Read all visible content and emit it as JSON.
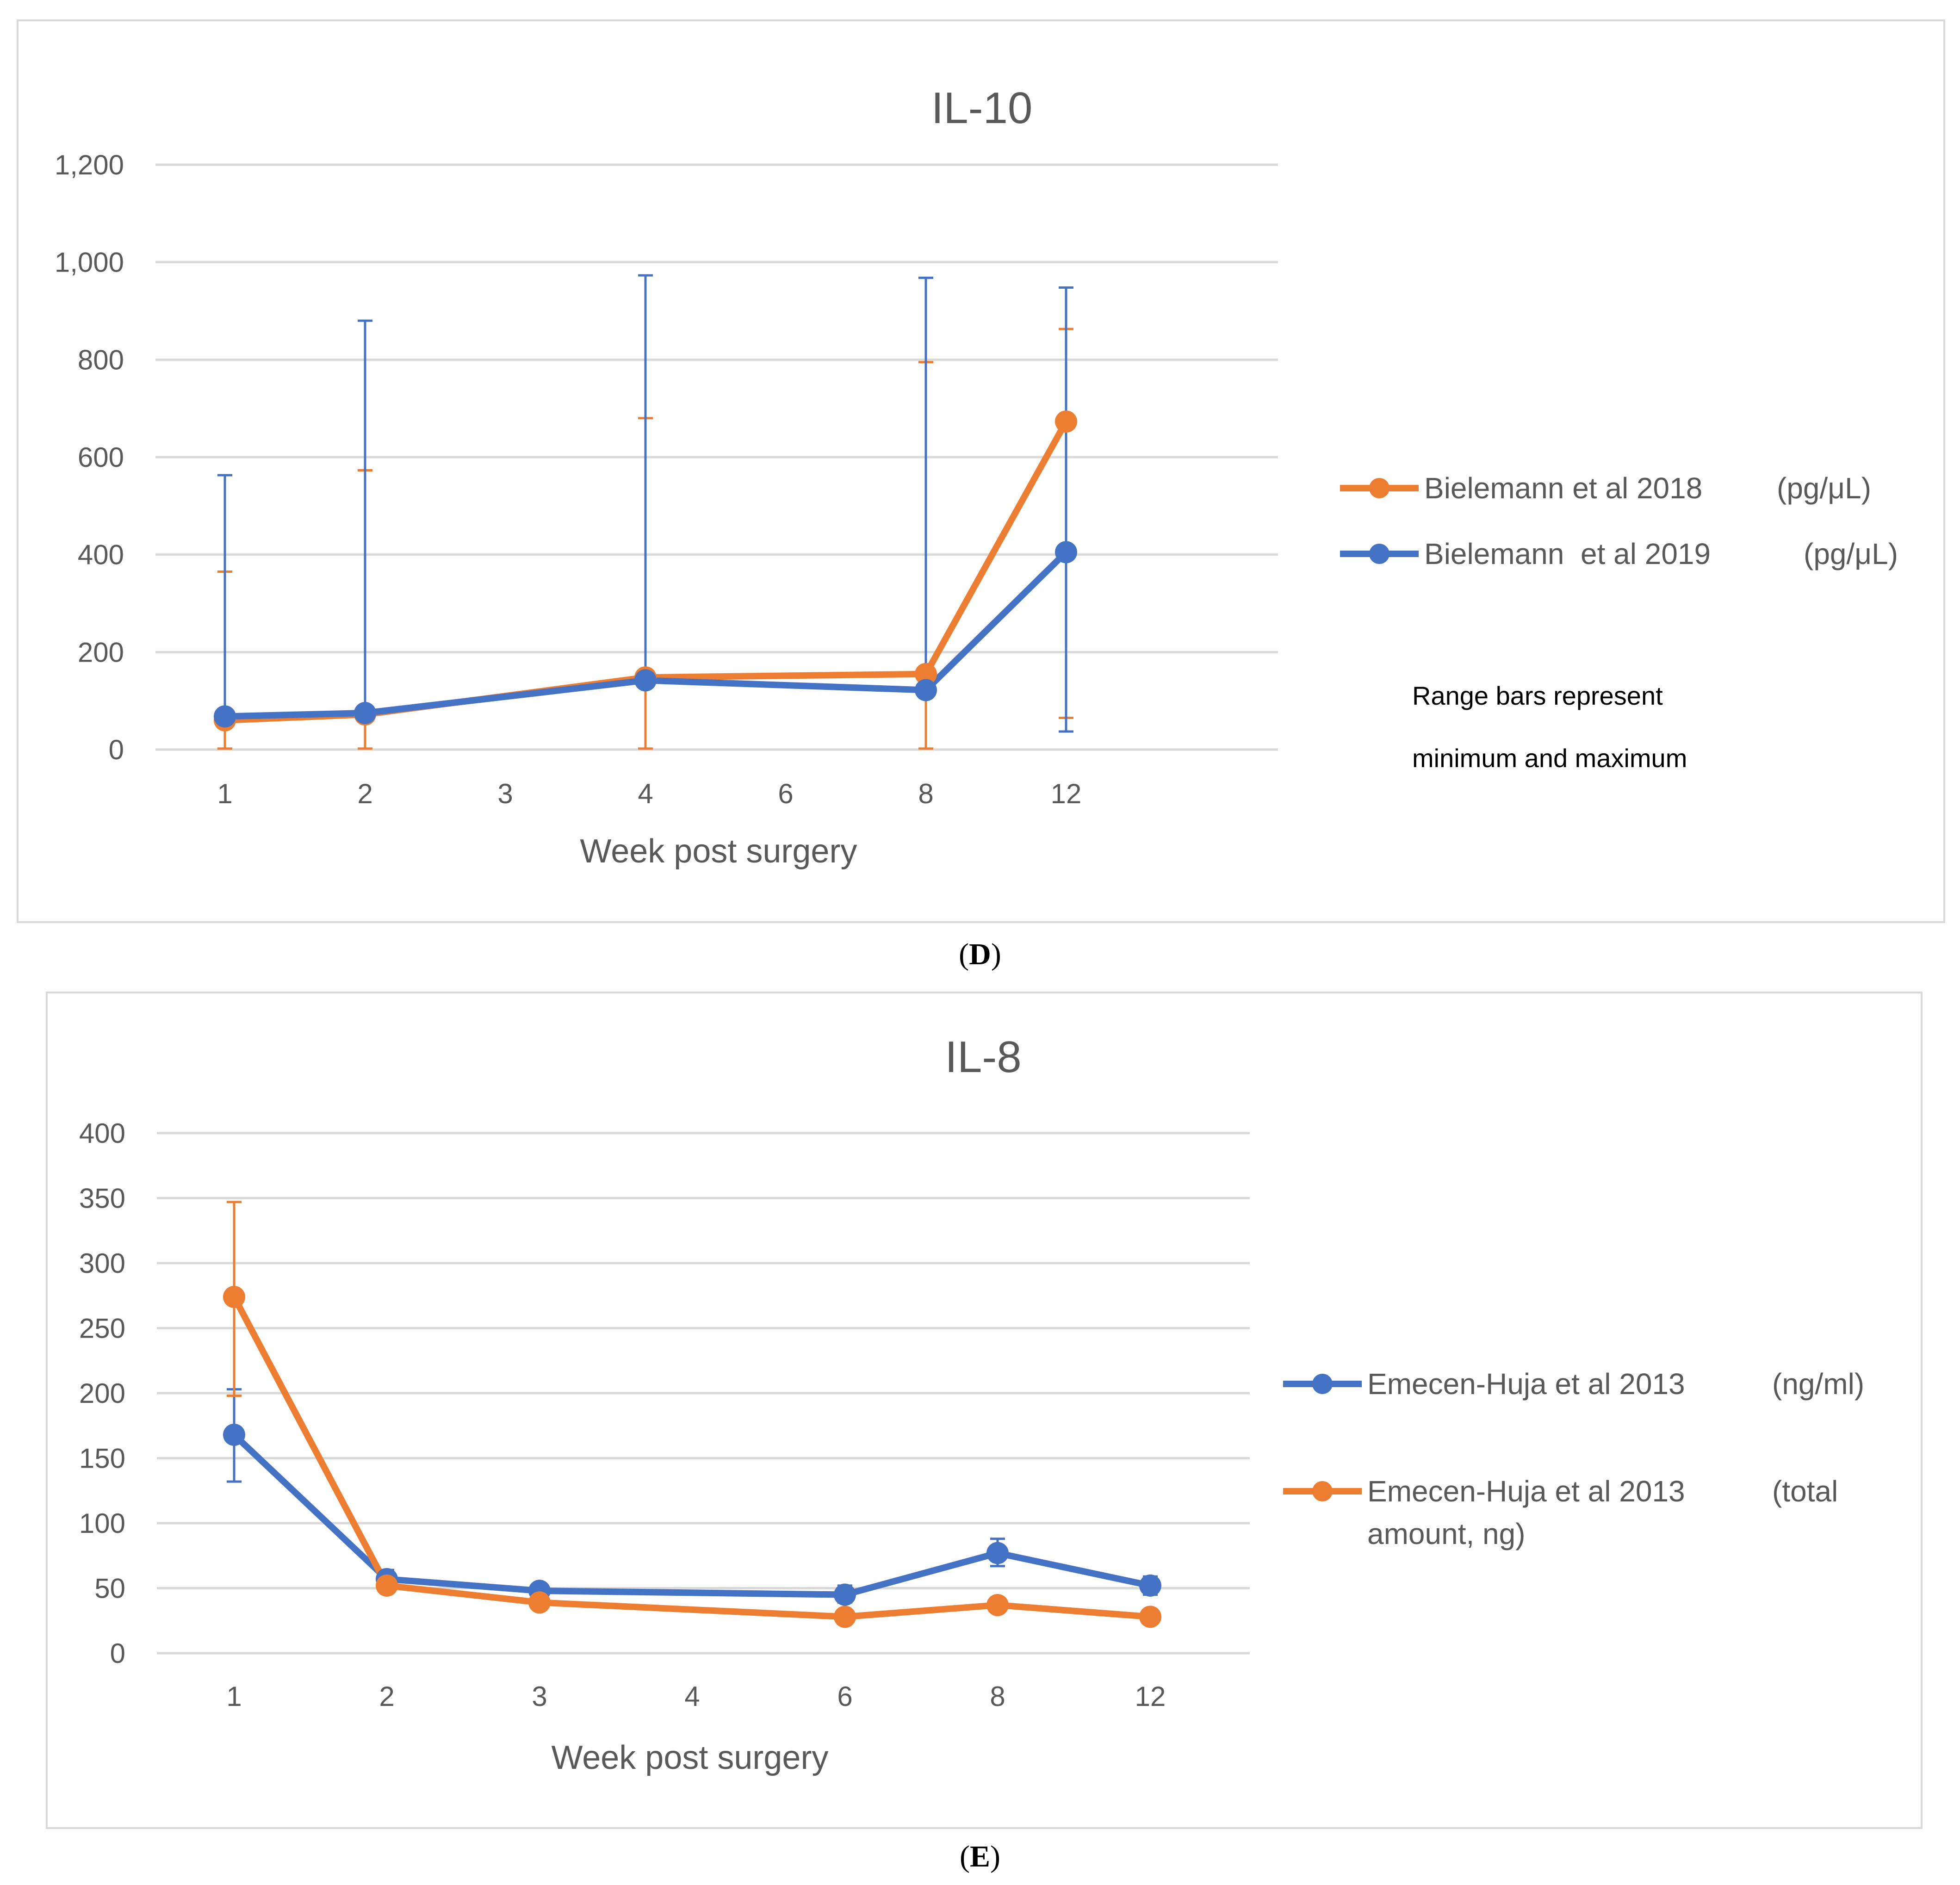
{
  "colors": {
    "orange": "#ED7D31",
    "blue": "#4472C4",
    "grid": "#d9d9d9",
    "text": "#595959"
  },
  "captions": {
    "d_open": "(",
    "d_letter": "D",
    "d_close": ")",
    "e_open": "(",
    "e_letter": "E",
    "e_close": ")"
  },
  "chart_data": [
    {
      "id": "il10",
      "type": "line",
      "title": "IL-10",
      "xlabel": "Week post surgery",
      "ylabel": "",
      "categories": [
        "1",
        "2",
        "3",
        "4",
        "6",
        "8",
        "12"
      ],
      "ylim": [
        0,
        1200
      ],
      "yticks": [
        0,
        200,
        400,
        600,
        800,
        1000,
        1200
      ],
      "ytick_labels": [
        "0",
        "200",
        "400",
        "600",
        "800",
        "1,000",
        "1,200"
      ],
      "grid": true,
      "legend": "right",
      "note": [
        "Range bars represent",
        "minimum and maximum"
      ],
      "series": [
        {
          "name": "Bielemann et al 2018",
          "unit": "(pg/μL)",
          "color": "#ED7D31",
          "values": [
            60,
            72,
            null,
            148,
            null,
            155,
            673
          ],
          "err_low": [
            2,
            2,
            null,
            2,
            null,
            2,
            65
          ],
          "err_high": [
            365,
            573,
            null,
            680,
            null,
            795,
            863
          ],
          "err_color": "#ED7D31"
        },
        {
          "name": "Bielemann  et al 2019",
          "unit": "(pg/μL)",
          "color": "#4472C4",
          "values": [
            68,
            75,
            null,
            142,
            null,
            122,
            405
          ],
          "err_low": [
            60,
            70,
            null,
            140,
            null,
            120,
            37
          ],
          "err_high": [
            563,
            880,
            null,
            973,
            null,
            968,
            948
          ],
          "err_color": "#4472C4"
        }
      ]
    },
    {
      "id": "il8",
      "type": "line",
      "title": "IL-8",
      "xlabel": "Week post surgery",
      "ylabel": "",
      "categories": [
        "1",
        "2",
        "3",
        "4",
        "6",
        "8",
        "12"
      ],
      "ylim": [
        0,
        400
      ],
      "yticks": [
        0,
        50,
        100,
        150,
        200,
        250,
        300,
        350,
        400
      ],
      "ytick_labels": [
        "0",
        "50",
        "100",
        "150",
        "200",
        "250",
        "300",
        "350",
        "400"
      ],
      "grid": true,
      "legend": "right",
      "series": [
        {
          "name": "Emecen-Huja et al 2013",
          "unit": "(ng/ml)",
          "color": "#4472C4",
          "values": [
            168,
            57,
            48,
            null,
            45,
            77,
            52
          ],
          "err_low": [
            132,
            50,
            43,
            null,
            39,
            67,
            45
          ],
          "err_high": [
            203,
            64,
            53,
            null,
            52,
            88,
            59
          ],
          "err_color": "#4472C4"
        },
        {
          "name": "Emecen-Huja et al 2013",
          "unit": "(total",
          "unit2": "amount, ng)",
          "color": "#ED7D31",
          "values": [
            274,
            52,
            39,
            null,
            28,
            37,
            28
          ],
          "err_low": [
            198,
            48,
            35,
            null,
            25,
            33,
            25
          ],
          "err_high": [
            347,
            56,
            43,
            null,
            31,
            41,
            31
          ],
          "err_color": "#ED7D31"
        }
      ]
    }
  ]
}
